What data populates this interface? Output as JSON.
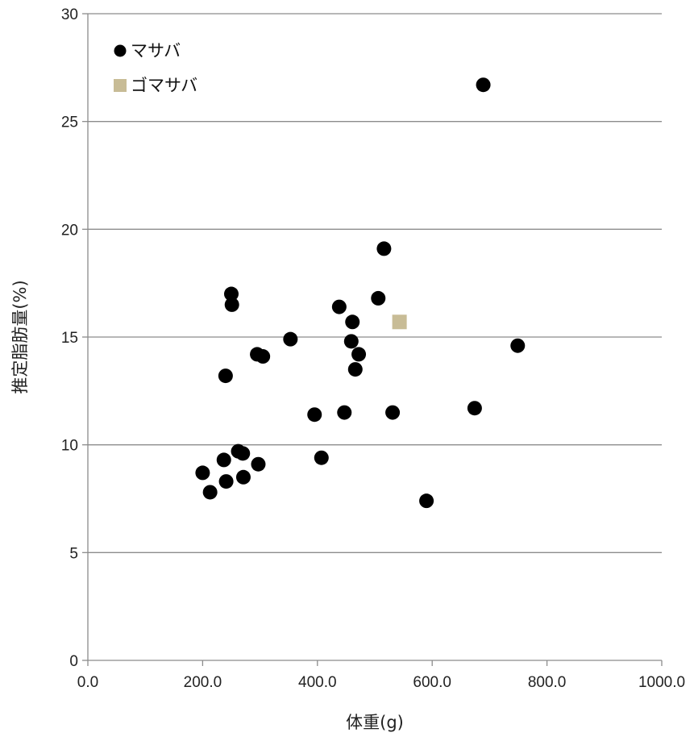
{
  "chart_data": {
    "type": "scatter",
    "xlabel": "体重(g)",
    "ylabel": "推定脂肪量(%)",
    "xlim": [
      0,
      1000
    ],
    "ylim": [
      0,
      30
    ],
    "x_ticks": [
      "0.0",
      "200.0",
      "400.0",
      "600.0",
      "800.0",
      "1000.0"
    ],
    "y_ticks": [
      "0",
      "5",
      "10",
      "15",
      "20",
      "25",
      "30"
    ],
    "grid": "horizontal",
    "legend_position": "top-left",
    "series": [
      {
        "name": "マサバ",
        "marker": "circle",
        "color": "#000000",
        "points": [
          [
            200,
            8.7
          ],
          [
            213,
            7.8
          ],
          [
            237,
            9.3
          ],
          [
            240,
            13.2
          ],
          [
            241,
            8.3
          ],
          [
            250,
            17.0
          ],
          [
            251,
            16.5
          ],
          [
            262,
            9.7
          ],
          [
            270,
            9.6
          ],
          [
            271,
            8.5
          ],
          [
            295,
            14.2
          ],
          [
            297,
            9.1
          ],
          [
            305,
            14.1
          ],
          [
            353,
            14.9
          ],
          [
            395,
            11.4
          ],
          [
            407,
            9.4
          ],
          [
            438,
            16.4
          ],
          [
            447,
            11.5
          ],
          [
            459,
            14.8
          ],
          [
            461,
            15.7
          ],
          [
            466,
            13.5
          ],
          [
            472,
            14.2
          ],
          [
            506,
            16.8
          ],
          [
            516,
            19.1
          ],
          [
            531,
            11.5
          ],
          [
            590,
            7.4
          ],
          [
            674,
            11.7
          ],
          [
            689,
            26.7
          ],
          [
            749,
            14.6
          ]
        ]
      },
      {
        "name": "ゴマサバ",
        "marker": "square",
        "color": "#c8bc96",
        "points": [
          [
            543,
            15.7
          ]
        ]
      }
    ]
  }
}
